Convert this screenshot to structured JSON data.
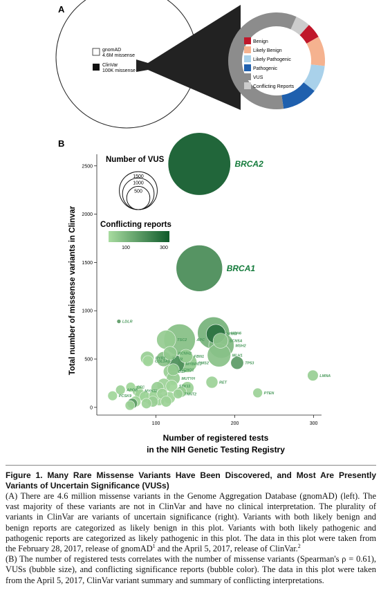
{
  "panel_a": {
    "label": "A",
    "gnomad_name": "gnomAD",
    "gnomad_count": "4.6M missense",
    "clinvar_name": "ClinVar",
    "clinvar_count": "100K missense",
    "legend": [
      {
        "label": "Benign",
        "color": "#c0172a"
      },
      {
        "label": "Likely Benign",
        "color": "#f5b28f"
      },
      {
        "label": "Likely Pathogenic",
        "color": "#a9d1ea"
      },
      {
        "label": "Pathogenic",
        "color": "#1f60ae"
      },
      {
        "label": "VUS",
        "color": "#8c8c8c"
      },
      {
        "label": "Conflicting Reports",
        "color": "#cccccc"
      }
    ],
    "donut_fractions": [
      {
        "category": "Conflicting Reports",
        "fraction": 0.05
      },
      {
        "category": "Benign",
        "fraction": 0.05
      },
      {
        "category": "Likely Benign",
        "fraction": 0.1
      },
      {
        "category": "Likely Pathogenic",
        "fraction": 0.09
      },
      {
        "category": "Pathogenic",
        "fraction": 0.12
      },
      {
        "category": "VUS",
        "fraction": 0.59
      }
    ]
  },
  "panel_b": {
    "label": "B",
    "size_legend_title": "Number of VUS",
    "size_legend_values": [
      "1500",
      "1000",
      "500"
    ],
    "color_legend_title": "Conflicting reports",
    "color_legend_ticks": [
      "100",
      "300"
    ]
  },
  "chart_data": {
    "type": "scatter",
    "xlabel_line1": "Number of registered tests",
    "xlabel_line2": "in the NIH Genetic Testing Registry",
    "ylabel": "Total number of missense variants in Clinvar",
    "xlim": [
      25,
      310
    ],
    "ylim": [
      -80,
      2620
    ],
    "xticks": [
      "100",
      "200",
      "300"
    ],
    "yticks": [
      "0",
      "500",
      "1000",
      "1500",
      "2000",
      "2500"
    ],
    "size_variable": "Number of VUS",
    "color_variable": "Conflicting reports",
    "points": [
      {
        "label": "BRCA2",
        "x": 155,
        "y": 2520,
        "vus": 2300,
        "conflicting": 400
      },
      {
        "label": "BRCA1",
        "x": 155,
        "y": 1440,
        "vus": 1200,
        "conflicting": 250
      },
      {
        "label": "LDLR",
        "x": 53,
        "y": 890,
        "vus": 0,
        "conflicting": 200
      },
      {
        "label": "APC",
        "x": 130,
        "y": 700,
        "vus": 500,
        "conflicting": 90
      },
      {
        "label": "MSH6",
        "x": 173,
        "y": 770,
        "vus": 520,
        "conflicting": 130
      },
      {
        "label": "MYH7",
        "x": 176,
        "y": 760,
        "vus": 150,
        "conflicting": 330
      },
      {
        "label": "SCN5A",
        "x": 182,
        "y": 690,
        "vus": 80,
        "conflicting": 70
      },
      {
        "label": "MSH2",
        "x": 183,
        "y": 640,
        "vus": 300,
        "conflicting": 110
      },
      {
        "label": "MLH1",
        "x": 180,
        "y": 540,
        "vus": 250,
        "conflicting": 80
      },
      {
        "label": "TSC2",
        "x": 113,
        "y": 700,
        "vus": 150,
        "conflicting": 50
      },
      {
        "label": "KCNH2",
        "x": 118,
        "y": 560,
        "vus": 60,
        "conflicting": 60
      },
      {
        "label": "FBN1",
        "x": 138,
        "y": 530,
        "vus": 60,
        "conflicting": 50
      },
      {
        "label": "RYR1",
        "x": 89,
        "y": 510,
        "vus": 60,
        "conflicting": 40
      },
      {
        "label": "RYR2",
        "x": 110,
        "y": 500,
        "vus": 80,
        "conflicting": 80
      },
      {
        "label": "COL3A1",
        "x": 90,
        "y": 480,
        "vus": 30,
        "conflicting": 20
      },
      {
        "label": "TP53",
        "x": 203,
        "y": 460,
        "vus": 50,
        "conflicting": 200
      },
      {
        "label": "MYBPC3",
        "x": 125,
        "y": 450,
        "vus": 120,
        "conflicting": 240
      },
      {
        "label": "PMS2",
        "x": 140,
        "y": 460,
        "vus": 150,
        "conflicting": 60
      },
      {
        "label": "KCNQ1",
        "x": 122,
        "y": 390,
        "vus": 40,
        "conflicting": 60
      },
      {
        "label": "DSP",
        "x": 118,
        "y": 370,
        "vus": 60,
        "conflicting": 40
      },
      {
        "label": "MUTYH",
        "x": 122,
        "y": 300,
        "vus": 60,
        "conflicting": 50
      },
      {
        "label": "RET",
        "x": 171,
        "y": 260,
        "vus": 40,
        "conflicting": 30
      },
      {
        "label": "STK11",
        "x": 120,
        "y": 220,
        "vus": 40,
        "conflicting": 20
      },
      {
        "label": "TNNT2",
        "x": 128,
        "y": 140,
        "vus": 20,
        "conflicting": 40
      },
      {
        "label": "LMNA",
        "x": 299,
        "y": 330,
        "vus": 30,
        "conflicting": 40
      },
      {
        "label": "PTEN",
        "x": 229,
        "y": 150,
        "vus": 20,
        "conflicting": 30
      },
      {
        "label": "CFC",
        "x": 68,
        "y": 210,
        "vus": 20,
        "conflicting": 20
      },
      {
        "label": "APOB",
        "x": 55,
        "y": 180,
        "vus": 20,
        "conflicting": 30
      },
      {
        "label": "MYH11",
        "x": 77,
        "y": 170,
        "vus": 30,
        "conflicting": 30
      },
      {
        "label": "PCSK9",
        "x": 45,
        "y": 120,
        "vus": 20,
        "conflicting": 20
      },
      {
        "label": "",
        "x": 80,
        "y": 130,
        "vus": 30,
        "conflicting": 30
      },
      {
        "label": "",
        "x": 86,
        "y": 110,
        "vus": 30,
        "conflicting": 25
      },
      {
        "label": "",
        "x": 93,
        "y": 90,
        "vus": 40,
        "conflicting": 30
      },
      {
        "label": "",
        "x": 98,
        "y": 120,
        "vus": 30,
        "conflicting": 20
      },
      {
        "label": "",
        "x": 104,
        "y": 80,
        "vus": 40,
        "conflicting": 25
      },
      {
        "label": "",
        "x": 108,
        "y": 140,
        "vus": 30,
        "conflicting": 30
      },
      {
        "label": "",
        "x": 74,
        "y": 60,
        "vus": 30,
        "conflicting": 20
      },
      {
        "label": "",
        "x": 70,
        "y": 40,
        "vus": 25,
        "conflicting": 200
      },
      {
        "label": "",
        "x": 67,
        "y": 20,
        "vus": 20,
        "conflicting": 30
      },
      {
        "label": "",
        "x": 113,
        "y": 60,
        "vus": 30,
        "conflicting": 30
      },
      {
        "label": "",
        "x": 117,
        "y": 100,
        "vus": 40,
        "conflicting": 20
      },
      {
        "label": "",
        "x": 102,
        "y": 200,
        "vus": 50,
        "conflicting": 40
      },
      {
        "label": "",
        "x": 110,
        "y": 230,
        "vus": 60,
        "conflicting": 30
      },
      {
        "label": "",
        "x": 96,
        "y": 60,
        "vus": 30,
        "conflicting": 40
      },
      {
        "label": "",
        "x": 88,
        "y": 40,
        "vus": 25,
        "conflicting": 30
      },
      {
        "label": "",
        "x": 132,
        "y": 160,
        "vus": 30,
        "conflicting": 40
      },
      {
        "label": "",
        "x": 140,
        "y": 200,
        "vus": 50,
        "conflicting": 30
      }
    ]
  },
  "caption": {
    "title": "Figure 1.   Many Rare Missense Variants Have Been Discovered, and Most Are Presently Variants of Uncertain Significance (VUSs)",
    "a_pre": "(A) There are 4.6 million missense variants in the Genome Aggregation Database (gnomAD) (left). The vast majority of these variants are not in ClinVar and have no clinical interpretation. The plurality of variants in ClinVar are variants of uncertain significance (right). Variants with both likely benign and benign reports are categorized as likely benign in this plot. Variants with both likely pathogenic and pathogenic reports are categorized as likely pathogenic in this plot. The data in this plot were taken from the February 28, 2017, release of gnomAD",
    "a_sup1": "1",
    "a_mid": " and the April 5, 2017, release of ClinVar.",
    "a_sup2": "2",
    "b_text": "(B) The number of registered tests correlates with the number of missense variants (Spearman's ρ = 0.61), VUSs (bubble size), and conflicting significance reports (bubble color). The data in this plot were taken from the April 5, 2017, ClinVar variant summary and summary of conflicting interpretations."
  }
}
